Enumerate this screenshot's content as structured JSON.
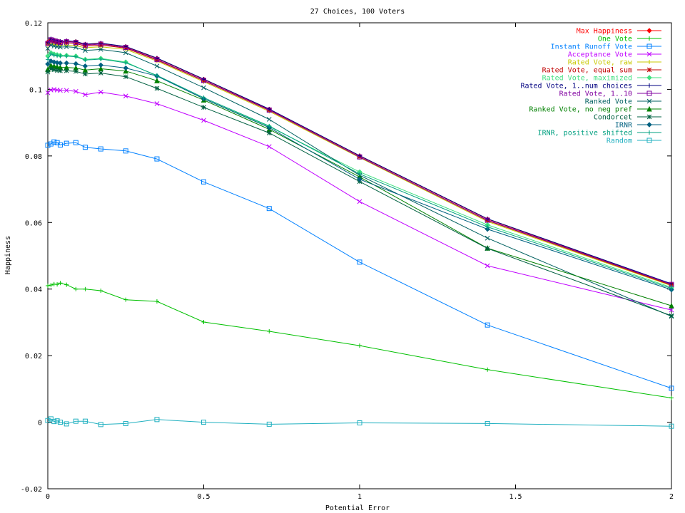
{
  "chart_data": {
    "type": "line",
    "title": "27 Choices, 100 Voters",
    "xlabel": "Potential Error",
    "ylabel": "Happiness",
    "xlim": [
      0,
      2
    ],
    "ylim": [
      -0.02,
      0.12
    ],
    "xticks": [
      0,
      0.5,
      1,
      1.5,
      2
    ],
    "xtick_labels": [
      "0",
      "0.5",
      "1",
      "1.5",
      "2"
    ],
    "yticks": [
      -0.02,
      0,
      0.02,
      0.04,
      0.06,
      0.08,
      0.1,
      0.12
    ],
    "ytick_labels": [
      "-0.02",
      "0",
      "0.02",
      "0.04",
      "0.06",
      "0.08",
      "0.1",
      "0.12"
    ],
    "grid": false,
    "legend_position": "top-right",
    "x": [
      0,
      0.01,
      0.02,
      0.03,
      0.04,
      0.06,
      0.09,
      0.12,
      0.17,
      0.25,
      0.35,
      0.5,
      0.71,
      1.0,
      1.41,
      2.0
    ],
    "series": [
      {
        "name": "Max Happiness",
        "color": "#ff0000",
        "marker": "diamond",
        "values": [
          0.1142,
          0.115,
          0.1147,
          0.1145,
          0.1143,
          0.1145,
          0.1143,
          0.1135,
          0.1138,
          0.1128,
          0.1093,
          0.103,
          0.094,
          0.08,
          0.061,
          0.0415
        ]
      },
      {
        "name": "One Vote",
        "color": "#00c000",
        "marker": "plus",
        "values": [
          0.041,
          0.0412,
          0.0415,
          0.0414,
          0.0418,
          0.0413,
          0.04,
          0.04,
          0.0395,
          0.0368,
          0.0363,
          0.0301,
          0.0273,
          0.023,
          0.0158,
          0.0073
        ]
      },
      {
        "name": "Instant Runoff Vote",
        "color": "#0080ff",
        "marker": "square",
        "values": [
          0.0832,
          0.0836,
          0.0842,
          0.084,
          0.0833,
          0.0838,
          0.084,
          0.0826,
          0.0821,
          0.0815,
          0.0791,
          0.0722,
          0.0642,
          0.0481,
          0.0292,
          0.0102
        ]
      },
      {
        "name": "Acceptance Vote",
        "color": "#c000ff",
        "marker": "x",
        "values": [
          0.099,
          0.0998,
          0.1,
          0.0998,
          0.0997,
          0.0997,
          0.0994,
          0.0984,
          0.0992,
          0.098,
          0.0957,
          0.0907,
          0.0828,
          0.0663,
          0.047,
          0.0337
        ]
      },
      {
        "name": "Rated Vote, raw",
        "color": "#c8c800",
        "marker": "plus",
        "values": [
          0.1132,
          0.1137,
          0.1135,
          0.1134,
          0.1133,
          0.1133,
          0.1131,
          0.1125,
          0.1128,
          0.112,
          0.1085,
          0.1023,
          0.0934,
          0.0795,
          0.0603,
          0.041
        ]
      },
      {
        "name": "Rated Vote, equal sum",
        "color": "#c00000",
        "marker": "star",
        "values": [
          0.1138,
          0.1146,
          0.1143,
          0.1141,
          0.1139,
          0.114,
          0.1138,
          0.113,
          0.1133,
          0.1124,
          0.1088,
          0.1026,
          0.0937,
          0.0797,
          0.0606,
          0.0412
        ]
      },
      {
        "name": "Rated Vote, maximized",
        "color": "#40e080",
        "marker": "diamond",
        "values": [
          0.11,
          0.111,
          0.1106,
          0.1104,
          0.1102,
          0.1102,
          0.11,
          0.109,
          0.1093,
          0.1082,
          0.104,
          0.0972,
          0.0888,
          0.0752,
          0.0593,
          0.0405
        ]
      },
      {
        "name": "Rated Vote, 1..num choices",
        "color": "#000080",
        "marker": "plus",
        "values": [
          0.114,
          0.1152,
          0.1149,
          0.1146,
          0.1144,
          0.1146,
          0.1144,
          0.1136,
          0.1139,
          0.1129,
          0.1094,
          0.1031,
          0.0941,
          0.0801,
          0.0611,
          0.0416
        ]
      },
      {
        "name": "Rated Vote, 1..10",
        "color": "#8000a0",
        "marker": "square",
        "values": [
          0.1138,
          0.1149,
          0.1146,
          0.1143,
          0.1141,
          0.1143,
          0.1141,
          0.1133,
          0.1136,
          0.1126,
          0.109,
          0.1027,
          0.0938,
          0.0797,
          0.0607,
          0.0414
        ]
      },
      {
        "name": "Ranked Vote",
        "color": "#006060",
        "marker": "x",
        "values": [
          0.1123,
          0.1133,
          0.113,
          0.1128,
          0.1127,
          0.1128,
          0.1126,
          0.1117,
          0.112,
          0.111,
          0.107,
          0.1005,
          0.091,
          0.0742,
          0.0553,
          0.0318
        ]
      },
      {
        "name": "Ranked Vote, no neg pref",
        "color": "#008000",
        "marker": "triangle",
        "values": [
          0.106,
          0.1072,
          0.107,
          0.1068,
          0.1066,
          0.1066,
          0.1064,
          0.1058,
          0.1062,
          0.1055,
          0.1026,
          0.0968,
          0.088,
          0.0737,
          0.0523,
          0.035
        ]
      },
      {
        "name": "Condorcet",
        "color": "#006040",
        "marker": "star",
        "values": [
          0.1052,
          0.1062,
          0.1059,
          0.1057,
          0.1056,
          0.1056,
          0.1054,
          0.1046,
          0.1049,
          0.1038,
          0.1003,
          0.0946,
          0.0869,
          0.0723,
          0.0522,
          0.032
        ]
      },
      {
        "name": "IRNR",
        "color": "#006080",
        "marker": "diamond",
        "values": [
          0.1076,
          0.1085,
          0.1082,
          0.108,
          0.1079,
          0.1079,
          0.1077,
          0.107,
          0.1073,
          0.1064,
          0.104,
          0.0972,
          0.0885,
          0.073,
          0.058,
          0.0398
        ]
      },
      {
        "name": "IRNR, positive shifted",
        "color": "#00a080",
        "marker": "plus",
        "values": [
          0.109,
          0.1106,
          0.1103,
          0.1101,
          0.11,
          0.11,
          0.1098,
          0.1088,
          0.1091,
          0.108,
          0.1042,
          0.0975,
          0.089,
          0.0746,
          0.0587,
          0.0402
        ]
      },
      {
        "name": "Random",
        "color": "#20b0c0",
        "marker": "square",
        "values": [
          0.0005,
          0.001,
          0.0002,
          0.0004,
          0.0,
          -0.0005,
          0.0003,
          0.0003,
          -0.0007,
          -0.0004,
          0.0008,
          0.0,
          -0.0006,
          -0.0002,
          -0.0004,
          -0.0012
        ]
      }
    ]
  }
}
